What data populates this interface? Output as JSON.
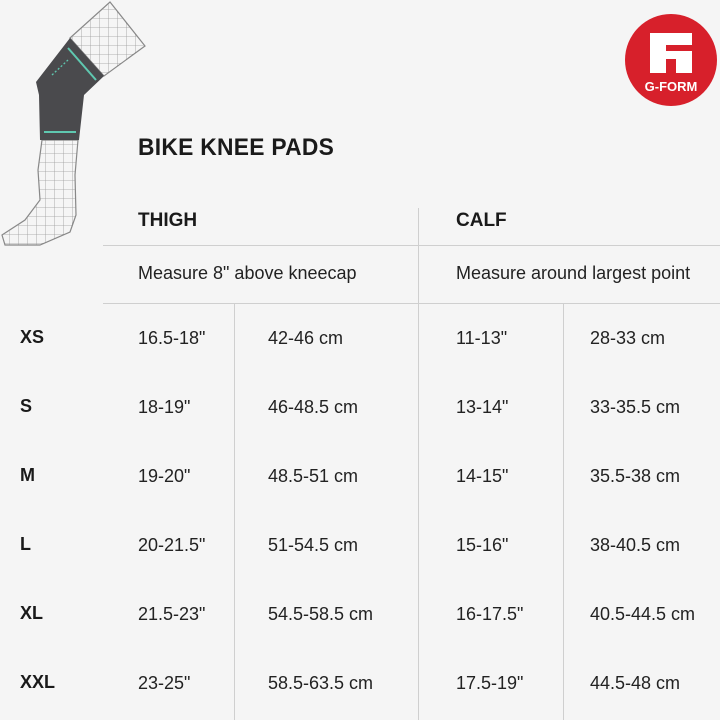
{
  "title": "BIKE KNEE PADS",
  "brand": {
    "name": "G-FORM",
    "color": "#d7202b"
  },
  "headers": {
    "thigh": "THIGH",
    "calf": "CALF"
  },
  "notes": {
    "thigh": "Measure 8\" above kneecap",
    "calf": "Measure around largest point"
  },
  "rows": [
    {
      "size": "XS",
      "thigh_in": "16.5-18\"",
      "thigh_cm": "42-46 cm",
      "calf_in": "11-13\"",
      "calf_cm": "28-33 cm"
    },
    {
      "size": "S",
      "thigh_in": "18-19\"",
      "thigh_cm": "46-48.5 cm",
      "calf_in": "13-14\"",
      "calf_cm": "33-35.5 cm"
    },
    {
      "size": "M",
      "thigh_in": "19-20\"",
      "thigh_cm": "48.5-51 cm",
      "calf_in": "14-15\"",
      "calf_cm": "35.5-38 cm"
    },
    {
      "size": "L",
      "thigh_in": "20-21.5\"",
      "thigh_cm": "51-54.5 cm",
      "calf_in": "15-16\"",
      "calf_cm": "38-40.5 cm"
    },
    {
      "size": "XL",
      "thigh_in": "21.5-23\"",
      "thigh_cm": "54.5-58.5 cm",
      "calf_in": "16-17.5\"",
      "calf_cm": "40.5-44.5 cm"
    },
    {
      "size": "XXL",
      "thigh_in": "23-25\"",
      "thigh_cm": "58.5-63.5 cm",
      "calf_in": "17.5-19\"",
      "calf_cm": "44.5-48 cm"
    }
  ],
  "colors": {
    "pad": "#4a4a4d",
    "arrow": "#5fc8b0"
  }
}
